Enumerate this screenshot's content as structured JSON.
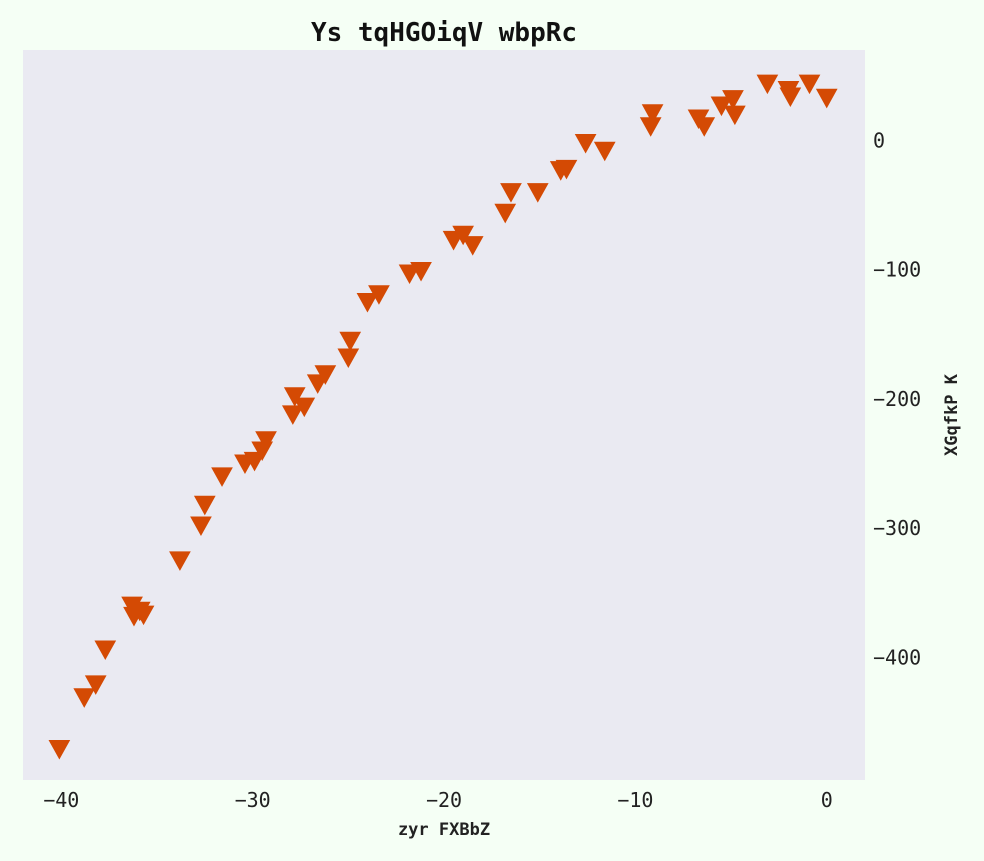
{
  "chart_data": {
    "type": "scatter",
    "title": "Ys tqHGOiqV wbpRc",
    "xlabel": "zyr FXBbZ",
    "ylabel": "XGqfkP  K",
    "xlim": [
      -42,
      2
    ],
    "ylim": [
      -495,
      70
    ],
    "xticks": [
      -40,
      -30,
      -20,
      -10,
      0
    ],
    "yticks": [
      0,
      -100,
      -200,
      -300,
      -400
    ],
    "xtick_labels": [
      "−40",
      "−30",
      "−20",
      "−10",
      "0"
    ],
    "ytick_labels": [
      "0",
      "−100",
      "−200",
      "−300",
      "−400"
    ],
    "y_axis_side": "right",
    "grid": false,
    "marker": "triangle-down",
    "colors": {
      "marker": "#d44a04",
      "plot_bg": "#eaeaf2",
      "page_bg": "#f5fff5"
    },
    "series": [
      {
        "points": [
          [
            -40.1,
            -471
          ],
          [
            -38.8,
            -431
          ],
          [
            -38.2,
            -421
          ],
          [
            -37.7,
            -394
          ],
          [
            -36.3,
            -360
          ],
          [
            -36.2,
            -368
          ],
          [
            -35.9,
            -364
          ],
          [
            -35.7,
            -367
          ],
          [
            -33.8,
            -325
          ],
          [
            -32.7,
            -298
          ],
          [
            -32.5,
            -282
          ],
          [
            -31.6,
            -260
          ],
          [
            -30.4,
            -250
          ],
          [
            -29.9,
            -248
          ],
          [
            -29.5,
            -240
          ],
          [
            -29.3,
            -232
          ],
          [
            -27.9,
            -212
          ],
          [
            -27.8,
            -198
          ],
          [
            -27.3,
            -206
          ],
          [
            -26.6,
            -188
          ],
          [
            -26.2,
            -181
          ],
          [
            -25.0,
            -168
          ],
          [
            -24.9,
            -155
          ],
          [
            -24.0,
            -125
          ],
          [
            -23.4,
            -119
          ],
          [
            -21.8,
            -103
          ],
          [
            -21.2,
            -101
          ],
          [
            -19.5,
            -77
          ],
          [
            -19.0,
            -73
          ],
          [
            -18.5,
            -81
          ],
          [
            -16.8,
            -56
          ],
          [
            -16.5,
            -40
          ],
          [
            -15.1,
            -40
          ],
          [
            -13.9,
            -23
          ],
          [
            -13.6,
            -22
          ],
          [
            -12.6,
            -2
          ],
          [
            -11.6,
            -8
          ],
          [
            -9.1,
            21
          ],
          [
            -9.2,
            11
          ],
          [
            -6.7,
            17
          ],
          [
            -6.4,
            11
          ],
          [
            -5.5,
            27
          ],
          [
            -4.9,
            32
          ],
          [
            -4.8,
            20
          ],
          [
            -3.1,
            44
          ],
          [
            -2.0,
            39
          ],
          [
            -1.9,
            34
          ],
          [
            -0.9,
            44
          ],
          [
            0.0,
            33
          ]
        ]
      }
    ]
  }
}
